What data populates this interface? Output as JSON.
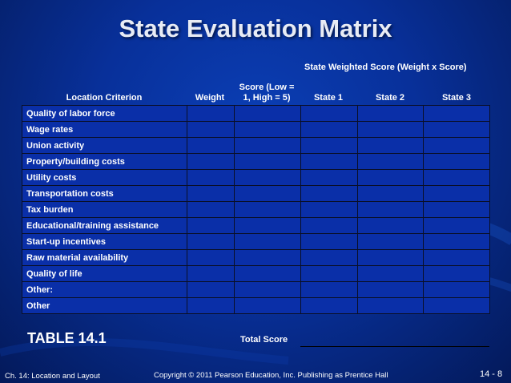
{
  "title": "State Evaluation Matrix",
  "weighted_header": "State Weighted Score (Weight x Score)",
  "columns": {
    "criterion": "Location Criterion",
    "weight": "Weight",
    "score_line1": "Score (Low =",
    "score_line2": "1, High = 5)",
    "state1": "State 1",
    "state2": "State 2",
    "state3": "State 3"
  },
  "rows": [
    "Quality of labor force",
    "Wage rates",
    "Union activity",
    "Property/building costs",
    "Utility costs",
    "Transportation costs",
    "Tax burden",
    "Educational/training assistance",
    "Start-up incentives",
    "Raw material availability",
    "Quality of life",
    "Other:",
    "Other"
  ],
  "table_label": "TABLE 14.1",
  "total_label": "Total Score",
  "footer": {
    "chapter": "Ch. 14: Location and Layout",
    "copyright": "Copyright © 2011 Pearson Education, Inc. Publishing as Prentice Hall",
    "page": "14 - 8"
  }
}
